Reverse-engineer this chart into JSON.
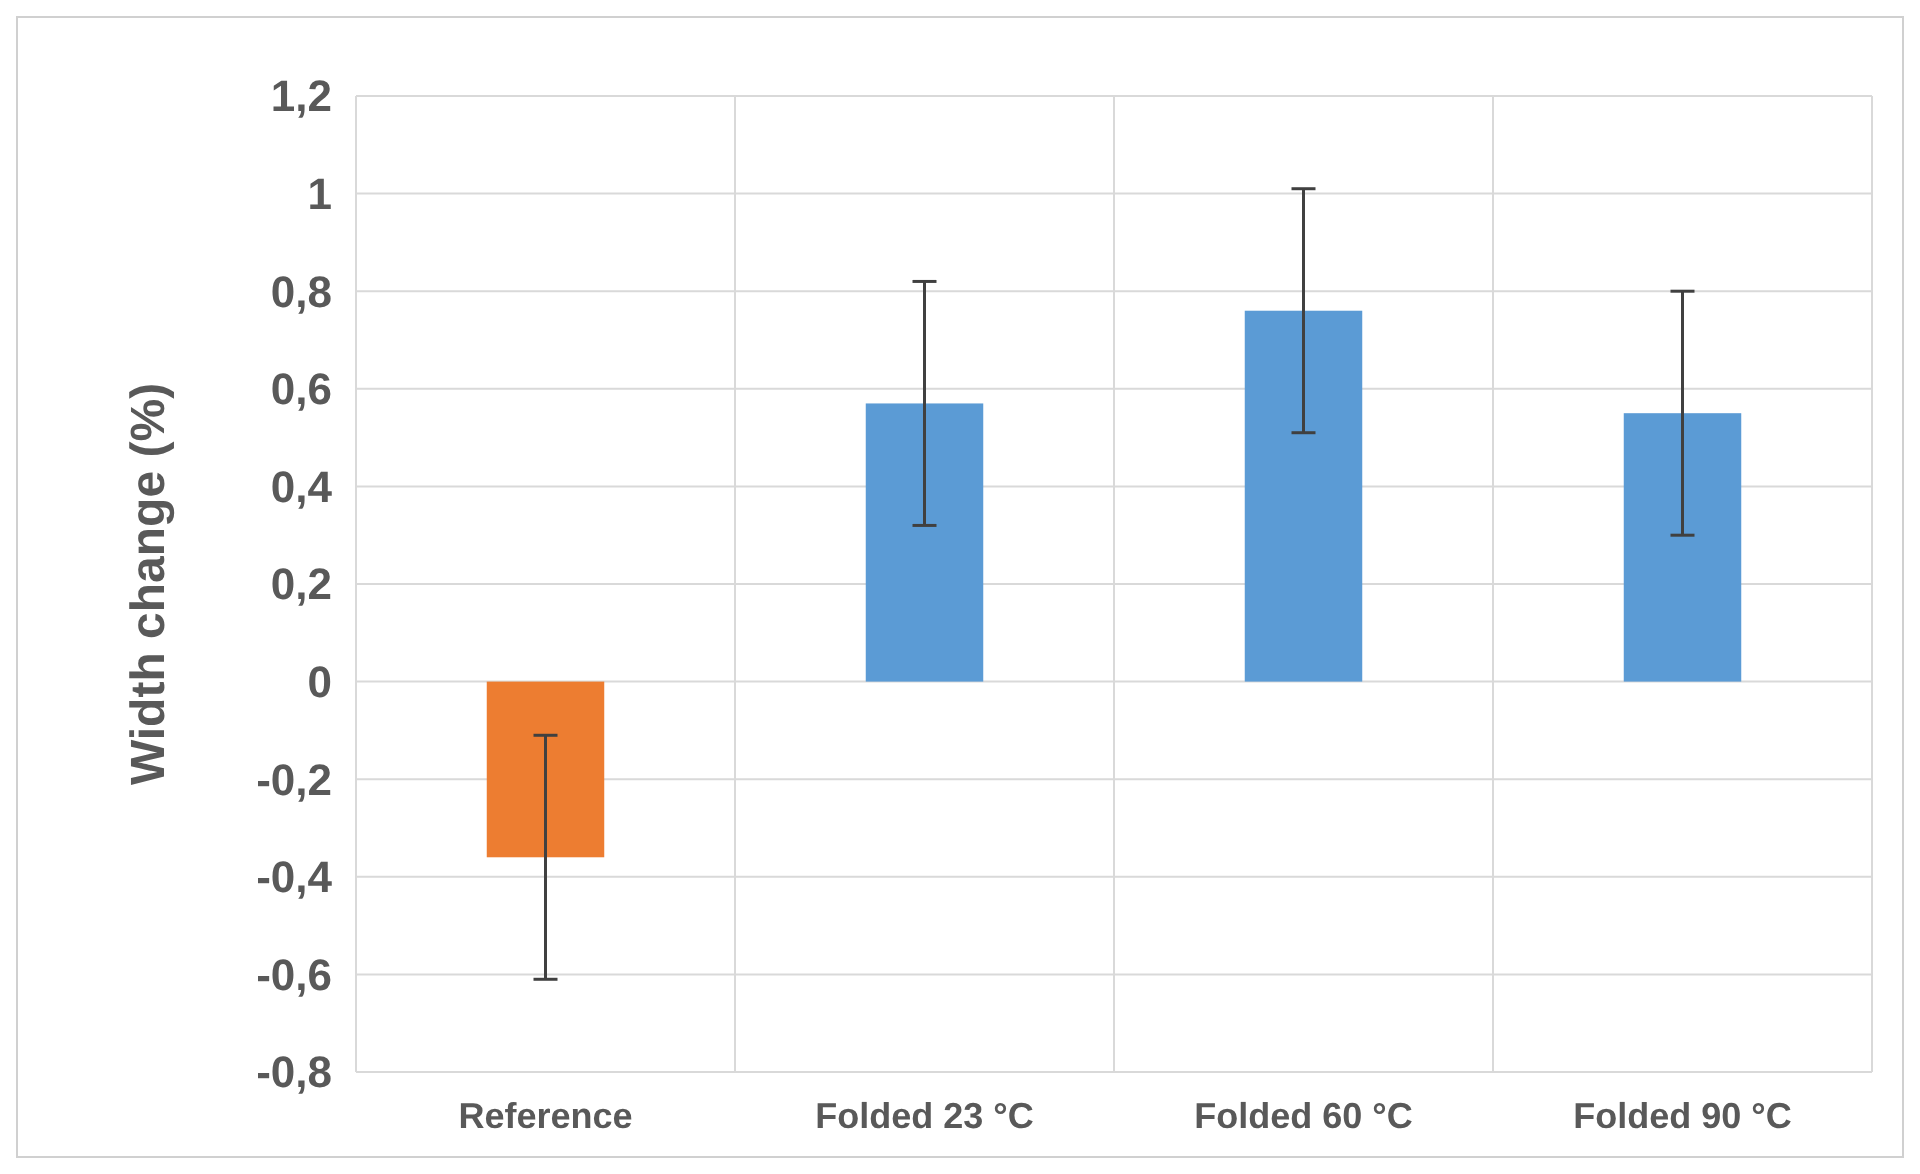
{
  "chart_data": {
    "type": "bar",
    "ylabel": "Width change (%)",
    "categories": [
      "Reference",
      "Folded 23 °C",
      "Folded 60 °C",
      "Folded 90 °C"
    ],
    "values": [
      -0.36,
      0.57,
      0.76,
      0.55
    ],
    "colors": [
      "#ed7d31",
      "#5b9bd5",
      "#5b9bd5",
      "#5b9bd5"
    ],
    "errors": [
      0.25,
      0.25,
      0.25,
      0.25
    ],
    "ylim": [
      -0.8,
      1.2
    ],
    "yticks": [
      {
        "value": -0.8,
        "label": "-0,8"
      },
      {
        "value": -0.6,
        "label": "-0,6"
      },
      {
        "value": -0.4,
        "label": "-0,4"
      },
      {
        "value": -0.2,
        "label": "-0,2"
      },
      0,
      {
        "value": 0.2,
        "label": "0,2"
      },
      {
        "value": 0.4,
        "label": "0,4"
      },
      {
        "value": 0.6,
        "label": "0,6"
      },
      {
        "value": 0.8,
        "label": "0,8"
      },
      1,
      {
        "value": 1.2,
        "label": "1,2"
      }
    ],
    "grid": true
  }
}
